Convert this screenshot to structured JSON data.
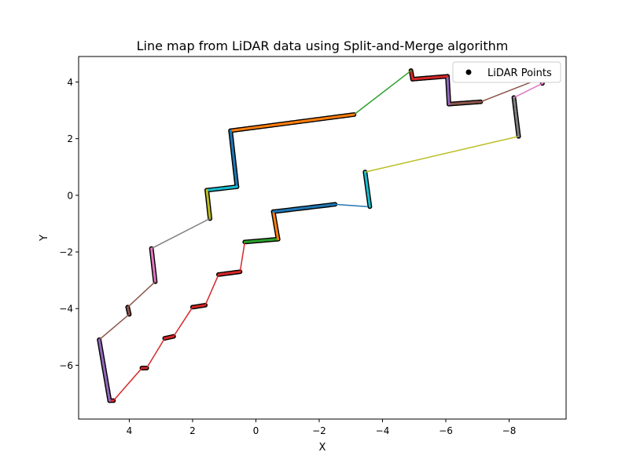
{
  "chart_data": {
    "type": "line",
    "title": "Line map from LiDAR data using Split-and-Merge algorithm",
    "xlabel": "X",
    "ylabel": "Y",
    "xlim": [
      5.6,
      -9.8
    ],
    "ylim": [
      4.9,
      -7.9
    ],
    "x_inverted": true,
    "y_inverted": true,
    "xticks": [
      4,
      2,
      0,
      -2,
      -4,
      -6,
      -8
    ],
    "xtick_labels": [
      "4",
      "2",
      "0",
      "−2",
      "−4",
      "−6",
      "−8"
    ],
    "yticks": [
      -6,
      -4,
      -2,
      0,
      2,
      4
    ],
    "ytick_labels": [
      "−6",
      "−4",
      "−2",
      "0",
      "2",
      "4"
    ],
    "grid": false,
    "legend": {
      "position": "upper right",
      "entries": [
        {
          "label": "LiDAR Points",
          "marker": "circle",
          "color": "#000000"
        }
      ]
    },
    "point_series": {
      "name": "LiDAR Points",
      "color": "#000000"
    },
    "segments": [
      {
        "x1": 4.62,
        "y1": -7.25,
        "x2": 4.5,
        "y2": -7.25,
        "color": "#d62728",
        "lidar": true
      },
      {
        "x1": 4.5,
        "y1": -7.25,
        "x2": 3.6,
        "y2": -6.1,
        "color": "#d62728",
        "lidar": false
      },
      {
        "x1": 3.6,
        "y1": -6.1,
        "x2": 3.45,
        "y2": -6.1,
        "color": "#d62728",
        "lidar": true
      },
      {
        "x1": 3.45,
        "y1": -6.1,
        "x2": 2.88,
        "y2": -5.05,
        "color": "#d62728",
        "lidar": false
      },
      {
        "x1": 2.88,
        "y1": -5.05,
        "x2": 2.6,
        "y2": -4.98,
        "color": "#d62728",
        "lidar": true
      },
      {
        "x1": 2.6,
        "y1": -4.98,
        "x2": 2.0,
        "y2": -3.95,
        "color": "#d62728",
        "lidar": false
      },
      {
        "x1": 2.0,
        "y1": -3.95,
        "x2": 1.6,
        "y2": -3.88,
        "color": "#d62728",
        "lidar": true
      },
      {
        "x1": 1.6,
        "y1": -3.88,
        "x2": 1.18,
        "y2": -2.8,
        "color": "#d62728",
        "lidar": false
      },
      {
        "x1": 1.18,
        "y1": -2.8,
        "x2": 0.5,
        "y2": -2.7,
        "color": "#d62728",
        "lidar": true
      },
      {
        "x1": 0.5,
        "y1": -2.7,
        "x2": 0.35,
        "y2": -1.65,
        "color": "#d62728",
        "lidar": false
      },
      {
        "x1": 0.35,
        "y1": -1.65,
        "x2": -0.7,
        "y2": -1.55,
        "color": "#2ca02c",
        "lidar": true
      },
      {
        "x1": -0.7,
        "y1": -1.55,
        "x2": -0.55,
        "y2": -0.58,
        "color": "#ff7f0e",
        "lidar": true
      },
      {
        "x1": -0.55,
        "y1": -0.58,
        "x2": -2.5,
        "y2": -0.32,
        "color": "#1f77b4",
        "lidar": true
      },
      {
        "x1": -2.5,
        "y1": -0.32,
        "x2": -3.5,
        "y2": -0.4,
        "color": "#1f77b4",
        "lidar": false
      },
      {
        "x1": -3.6,
        "y1": -0.4,
        "x2": -3.45,
        "y2": 0.82,
        "color": "#17becf",
        "lidar": true
      },
      {
        "x1": -3.45,
        "y1": 0.82,
        "x2": -8.3,
        "y2": 2.08,
        "color": "#bcbd22",
        "lidar": false
      },
      {
        "x1": -8.3,
        "y1": 2.08,
        "x2": -8.15,
        "y2": 3.45,
        "color": "#7f7f7f",
        "lidar": true
      },
      {
        "x1": -8.15,
        "y1": 3.45,
        "x2": -9.05,
        "y2": 3.95,
        "color": "#e377c2",
        "lidar": false
      },
      {
        "x1": -9.05,
        "y1": 3.95,
        "x2": -9.05,
        "y2": 4.15,
        "color": "#e377c2",
        "lidar": true
      },
      {
        "x1": -9.05,
        "y1": 4.15,
        "x2": -7.1,
        "y2": 3.3,
        "color": "#8c564b",
        "lidar": false
      },
      {
        "x1": -7.1,
        "y1": 3.3,
        "x2": -6.1,
        "y2": 3.22,
        "color": "#8c564b",
        "lidar": true
      },
      {
        "x1": -6.1,
        "y1": 3.22,
        "x2": -6.05,
        "y2": 4.2,
        "color": "#9467bd",
        "lidar": true
      },
      {
        "x1": -6.05,
        "y1": 4.2,
        "x2": -4.95,
        "y2": 4.1,
        "color": "#d62728",
        "lidar": true
      },
      {
        "x1": -4.95,
        "y1": 4.1,
        "x2": -4.9,
        "y2": 4.4,
        "color": "#d62728",
        "lidar": true
      },
      {
        "x1": -4.9,
        "y1": 4.4,
        "x2": -3.1,
        "y2": 2.85,
        "color": "#2ca02c",
        "lidar": false
      },
      {
        "x1": -3.1,
        "y1": 2.85,
        "x2": 0.8,
        "y2": 2.28,
        "color": "#ff7f0e",
        "lidar": true
      },
      {
        "x1": 0.8,
        "y1": 2.28,
        "x2": 0.6,
        "y2": 0.3,
        "color": "#1f77b4",
        "lidar": true
      },
      {
        "x1": 0.6,
        "y1": 0.3,
        "x2": 1.55,
        "y2": 0.18,
        "color": "#17becf",
        "lidar": true
      },
      {
        "x1": 1.55,
        "y1": 0.18,
        "x2": 1.45,
        "y2": -0.82,
        "color": "#bcbd22",
        "lidar": true
      },
      {
        "x1": 1.45,
        "y1": -0.82,
        "x2": 3.3,
        "y2": -1.88,
        "color": "#7f7f7f",
        "lidar": false
      },
      {
        "x1": 3.3,
        "y1": -1.88,
        "x2": 3.18,
        "y2": -3.05,
        "color": "#e377c2",
        "lidar": true
      },
      {
        "x1": 3.18,
        "y1": -3.05,
        "x2": 4.05,
        "y2": -3.95,
        "color": "#8c564b",
        "lidar": false
      },
      {
        "x1": 4.05,
        "y1": -3.95,
        "x2": 4.0,
        "y2": -4.2,
        "color": "#8c564b",
        "lidar": true
      },
      {
        "x1": 4.0,
        "y1": -4.2,
        "x2": 4.95,
        "y2": -5.1,
        "color": "#8c564b",
        "lidar": false
      },
      {
        "x1": 4.95,
        "y1": -5.1,
        "x2": 4.62,
        "y2": -7.25,
        "color": "#9467bd",
        "lidar": true
      }
    ]
  }
}
